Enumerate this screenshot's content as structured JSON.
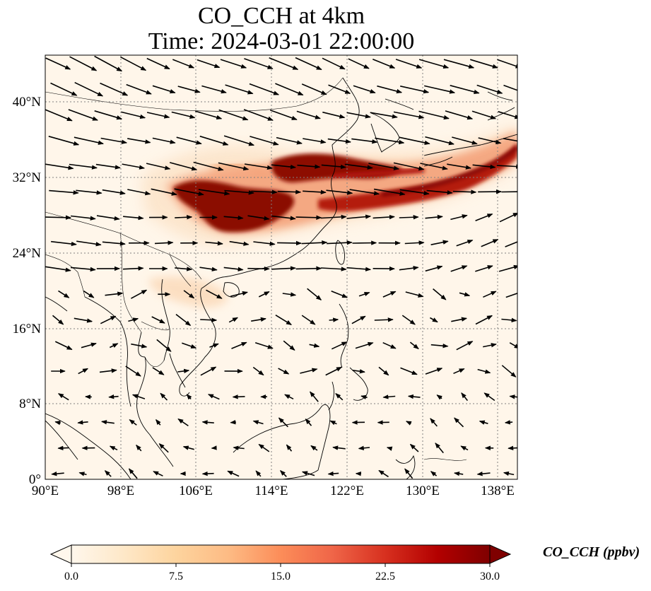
{
  "title": {
    "line1": "CO_CCH at 4km",
    "line2": "Time: 2024-03-01 22:00:00"
  },
  "axes": {
    "x_ticks": [
      {
        "value": 90,
        "label": "90°E"
      },
      {
        "value": 98,
        "label": "98°E"
      },
      {
        "value": 106,
        "label": "106°E"
      },
      {
        "value": 114,
        "label": "114°E"
      },
      {
        "value": 122,
        "label": "122°E"
      },
      {
        "value": 130,
        "label": "130°E"
      },
      {
        "value": 138,
        "label": "138°E"
      }
    ],
    "y_ticks": [
      {
        "value": 0,
        "label": "0°"
      },
      {
        "value": 8,
        "label": "8°N"
      },
      {
        "value": 16,
        "label": "16°N"
      },
      {
        "value": 24,
        "label": "24°N"
      },
      {
        "value": 32,
        "label": "32°N"
      },
      {
        "value": 40,
        "label": "40°N"
      }
    ],
    "lon_range": [
      90,
      140
    ],
    "lat_range": [
      0,
      45
    ],
    "grid": true
  },
  "colorbar": {
    "label": "CO_CCH (ppbv)",
    "range": [
      0,
      30
    ],
    "ticks": [
      "0.0",
      "7.5",
      "15.0",
      "22.5",
      "30.0"
    ],
    "colormap": "OrRd",
    "colors": [
      "#fff7ec",
      "#fee8c8",
      "#fdd49e",
      "#fdbb84",
      "#fc8d59",
      "#ef6548",
      "#d7301f",
      "#b30000",
      "#7f0000"
    ],
    "extend": "both"
  },
  "map": {
    "background_color": "#fff6ea",
    "plume_colors": {
      "low": "#fbd7b4",
      "mid": "#e05a3c",
      "high": "#a50f05",
      "max": "#7f0000"
    }
  }
}
